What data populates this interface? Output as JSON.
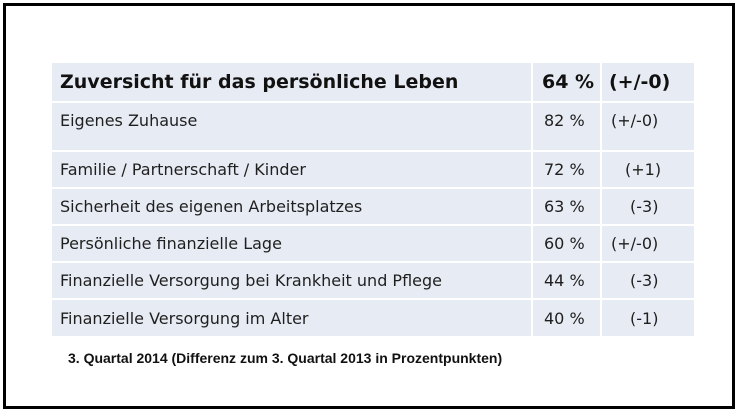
{
  "table": {
    "header": {
      "label": "Zuversicht für das persönliche Leben",
      "value": "64 %",
      "diff": "(+/-0)"
    },
    "rows": [
      {
        "label": "Eigenes Zuhause",
        "value": "82 %",
        "diff": "(+/-0)"
      },
      {
        "label": "Familie / Partnerschaft / Kinder",
        "value": "72 %",
        "diff": "(+1)"
      },
      {
        "label": "Sicherheit des eigenen Arbeitsplatzes",
        "value": "63 %",
        "diff": "(-3)"
      },
      {
        "label": "Persönliche finanzielle Lage",
        "value": "60 %",
        "diff": "(+/-0)"
      },
      {
        "label": "Finanzielle Versorgung bei Krankheit und Pflege",
        "value": "44 %",
        "diff": "(-3)"
      },
      {
        "label": "Finanzielle Versorgung im Alter",
        "value": "40 %",
        "diff": "(-1)"
      }
    ]
  },
  "footer": "3. Quartal 2014 (Differenz zum 3. Quartal 2013 in Prozentpunkten)",
  "colors": {
    "row_background": "#e7ebf3",
    "separator": "#ffffff",
    "text": "#1f1f1f",
    "frame_border": "#000000"
  },
  "chart_data": {
    "type": "table",
    "columns": [
      "",
      "",
      ""
    ],
    "rows": [
      [
        "Zuversicht für das persönliche Leben",
        "64 %",
        "(+/-0)"
      ],
      [
        "Eigenes Zuhause",
        "82 %",
        "(+/-0)"
      ],
      [
        "Familie / Partnerschaft / Kinder",
        "72 %",
        "(+1)"
      ],
      [
        "Sicherheit des eigenen Arbeitsplatzes",
        "63 %",
        "(-3)"
      ],
      [
        "Persönliche finanzielle Lage",
        "60 %",
        "(+/-0)"
      ],
      [
        "Finanzielle Versorgung bei Krankheit und Pflege",
        "44 %",
        "(-3)"
      ],
      [
        "Finanzielle Versorgung im Alter",
        "40 %",
        "(-1)"
      ]
    ],
    "values": [
      64,
      82,
      72,
      63,
      60,
      44,
      40
    ],
    "differences": [
      0,
      0,
      1,
      -3,
      0,
      -3,
      -1
    ]
  }
}
